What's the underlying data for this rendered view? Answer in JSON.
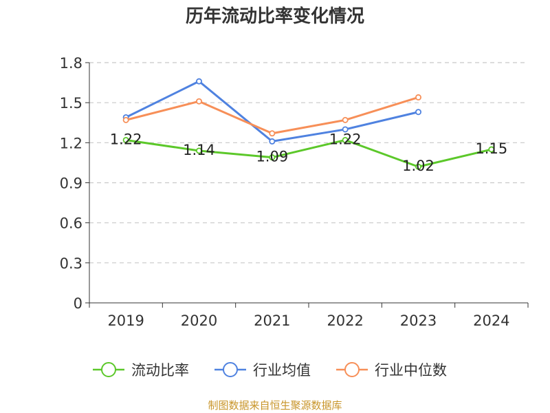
{
  "chart_data": {
    "type": "line",
    "title": "历年流动比率变化情况",
    "categories": [
      "2019",
      "2020",
      "2021",
      "2022",
      "2023",
      "2024"
    ],
    "ylim": [
      0,
      1.8
    ],
    "yticks": [
      "0",
      "0.3",
      "0.6",
      "0.9",
      "1.2",
      "1.5",
      "1.8"
    ],
    "grid": true,
    "legend_position": "bottom",
    "series": [
      {
        "name": "流动比率",
        "color": "#5cc82a",
        "values": [
          1.22,
          1.14,
          1.09,
          1.22,
          1.02,
          1.15
        ],
        "labels": [
          "1.22",
          "1.14",
          "1.09",
          "1.22",
          "1.02",
          "1.15"
        ]
      },
      {
        "name": "行业均值",
        "color": "#4f82e0",
        "values": [
          1.39,
          1.66,
          1.21,
          1.3,
          1.43,
          null
        ]
      },
      {
        "name": "行业中位数",
        "color": "#f78f58",
        "values": [
          1.37,
          1.51,
          1.27,
          1.37,
          1.54,
          null
        ]
      }
    ]
  },
  "footer": {
    "source": "制图数据来自恒生聚源数据库"
  }
}
